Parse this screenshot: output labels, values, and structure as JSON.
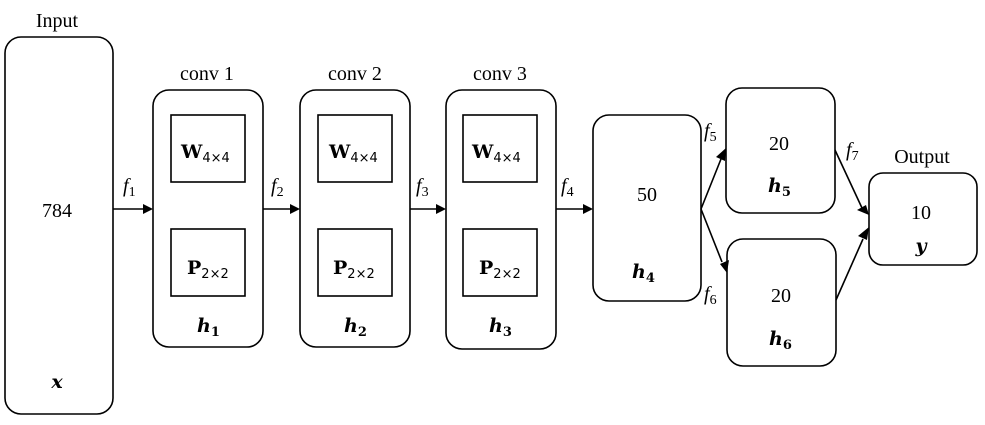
{
  "input": {
    "title": "Input",
    "size": "784",
    "var": "x"
  },
  "conv_layers": [
    {
      "title": "conv 1",
      "weight": "W",
      "weight_dim": "4×4",
      "pool": "P",
      "pool_dim": "2×2",
      "var": "h",
      "var_sub": "1"
    },
    {
      "title": "conv 2",
      "weight": "W",
      "weight_dim": "4×4",
      "pool": "P",
      "pool_dim": "2×2",
      "var": "h",
      "var_sub": "2"
    },
    {
      "title": "conv 3",
      "weight": "W",
      "weight_dim": "4×4",
      "pool": "P",
      "pool_dim": "2×2",
      "var": "h",
      "var_sub": "3"
    }
  ],
  "hidden": [
    {
      "size": "50",
      "var": "h",
      "var_sub": "4"
    },
    {
      "size": "20",
      "var": "h",
      "var_sub": "5"
    },
    {
      "size": "20",
      "var": "h",
      "var_sub": "6"
    }
  ],
  "output": {
    "title": "Output",
    "size": "10",
    "var": "y"
  },
  "functions": [
    {
      "name": "f",
      "sub": "1"
    },
    {
      "name": "f",
      "sub": "2"
    },
    {
      "name": "f",
      "sub": "3"
    },
    {
      "name": "f",
      "sub": "4"
    },
    {
      "name": "f",
      "sub": "5"
    },
    {
      "name": "f",
      "sub": "6"
    },
    {
      "name": "f",
      "sub": "7"
    }
  ]
}
